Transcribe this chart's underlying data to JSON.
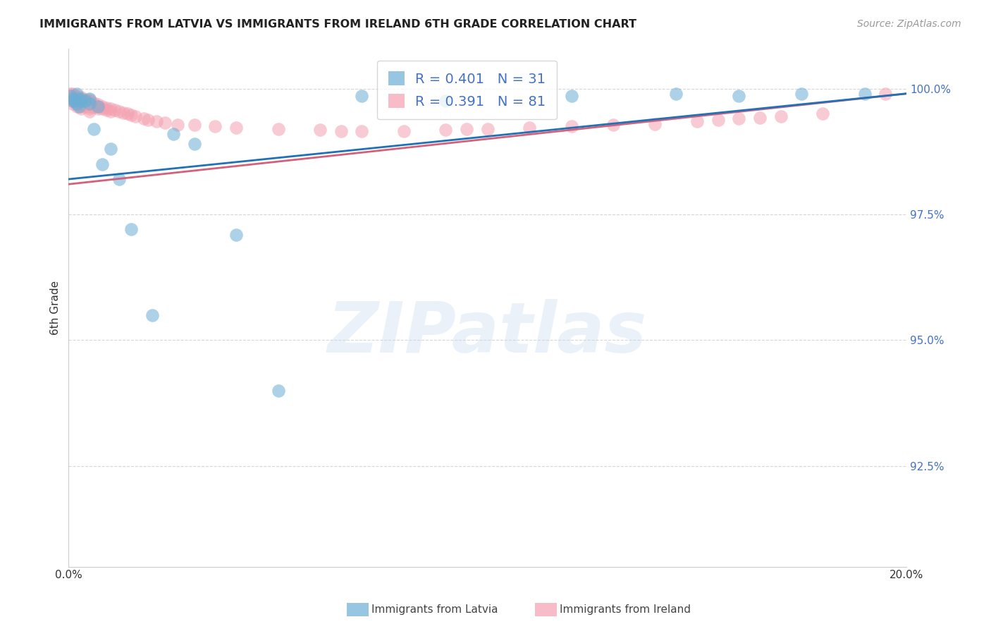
{
  "title": "IMMIGRANTS FROM LATVIA VS IMMIGRANTS FROM IRELAND 6TH GRADE CORRELATION CHART",
  "source": "Source: ZipAtlas.com",
  "ylabel": "6th Grade",
  "ytick_labels": [
    "100.0%",
    "97.5%",
    "95.0%",
    "92.5%"
  ],
  "ytick_values": [
    1.0,
    0.975,
    0.95,
    0.925
  ],
  "xlim": [
    0.0,
    0.2
  ],
  "ylim": [
    0.905,
    1.008
  ],
  "legend_latvia": "Immigrants from Latvia",
  "legend_ireland": "Immigrants from Ireland",
  "R_latvia": 0.401,
  "N_latvia": 31,
  "R_ireland": 0.391,
  "N_ireland": 81,
  "latvia_color": "#6baed6",
  "ireland_color": "#f4a0b0",
  "trendline_latvia_color": "#2171b5",
  "trendline_ireland_color": "#d4607a",
  "background_color": "#ffffff",
  "latvia_x": [
    0.0005,
    0.001,
    0.001,
    0.0015,
    0.002,
    0.002,
    0.002,
    0.0025,
    0.003,
    0.003,
    0.004,
    0.005,
    0.005,
    0.006,
    0.007,
    0.008,
    0.01,
    0.012,
    0.015,
    0.02,
    0.025,
    0.03,
    0.04,
    0.05,
    0.07,
    0.09,
    0.12,
    0.145,
    0.16,
    0.175,
    0.19
  ],
  "latvia_y": [
    0.9985,
    0.998,
    0.9975,
    0.9975,
    0.999,
    0.998,
    0.997,
    0.9965,
    0.998,
    0.9975,
    0.9975,
    0.998,
    0.997,
    0.992,
    0.9965,
    0.985,
    0.988,
    0.982,
    0.972,
    0.955,
    0.991,
    0.989,
    0.971,
    0.94,
    0.9985,
    0.9975,
    0.9985,
    0.999,
    0.9985,
    0.999,
    0.999
  ],
  "ireland_x": [
    0.0005,
    0.0005,
    0.001,
    0.001,
    0.001,
    0.001,
    0.001,
    0.001,
    0.0015,
    0.0015,
    0.002,
    0.002,
    0.002,
    0.002,
    0.002,
    0.002,
    0.0025,
    0.0025,
    0.003,
    0.003,
    0.003,
    0.003,
    0.003,
    0.003,
    0.0035,
    0.004,
    0.004,
    0.004,
    0.004,
    0.0045,
    0.005,
    0.005,
    0.005,
    0.005,
    0.005,
    0.005,
    0.006,
    0.006,
    0.006,
    0.007,
    0.007,
    0.007,
    0.008,
    0.008,
    0.009,
    0.009,
    0.01,
    0.01,
    0.011,
    0.012,
    0.013,
    0.014,
    0.015,
    0.016,
    0.018,
    0.019,
    0.021,
    0.023,
    0.026,
    0.03,
    0.035,
    0.04,
    0.05,
    0.06,
    0.065,
    0.07,
    0.08,
    0.09,
    0.095,
    0.1,
    0.11,
    0.12,
    0.13,
    0.14,
    0.15,
    0.155,
    0.16,
    0.165,
    0.17,
    0.18,
    0.195
  ],
  "ireland_y": [
    0.999,
    0.9985,
    0.999,
    0.9985,
    0.998,
    0.998,
    0.9975,
    0.997,
    0.9985,
    0.998,
    0.9985,
    0.9982,
    0.9978,
    0.9975,
    0.997,
    0.9965,
    0.998,
    0.9975,
    0.9982,
    0.9978,
    0.9975,
    0.997,
    0.9965,
    0.996,
    0.9975,
    0.9978,
    0.9975,
    0.997,
    0.9965,
    0.9972,
    0.9978,
    0.9975,
    0.997,
    0.9965,
    0.996,
    0.9955,
    0.9972,
    0.9968,
    0.9963,
    0.9968,
    0.9965,
    0.996,
    0.9965,
    0.996,
    0.9962,
    0.9958,
    0.996,
    0.9955,
    0.9958,
    0.9955,
    0.9952,
    0.995,
    0.9948,
    0.9945,
    0.994,
    0.9938,
    0.9935,
    0.9932,
    0.9928,
    0.9928,
    0.9925,
    0.9922,
    0.992,
    0.9918,
    0.9915,
    0.9915,
    0.9915,
    0.9918,
    0.992,
    0.992,
    0.9922,
    0.9925,
    0.9928,
    0.993,
    0.9935,
    0.9938,
    0.994,
    0.9942,
    0.9945,
    0.995,
    0.999
  ],
  "watermark_text": "ZIPatlas",
  "watermark_color": "#c8d8f0"
}
